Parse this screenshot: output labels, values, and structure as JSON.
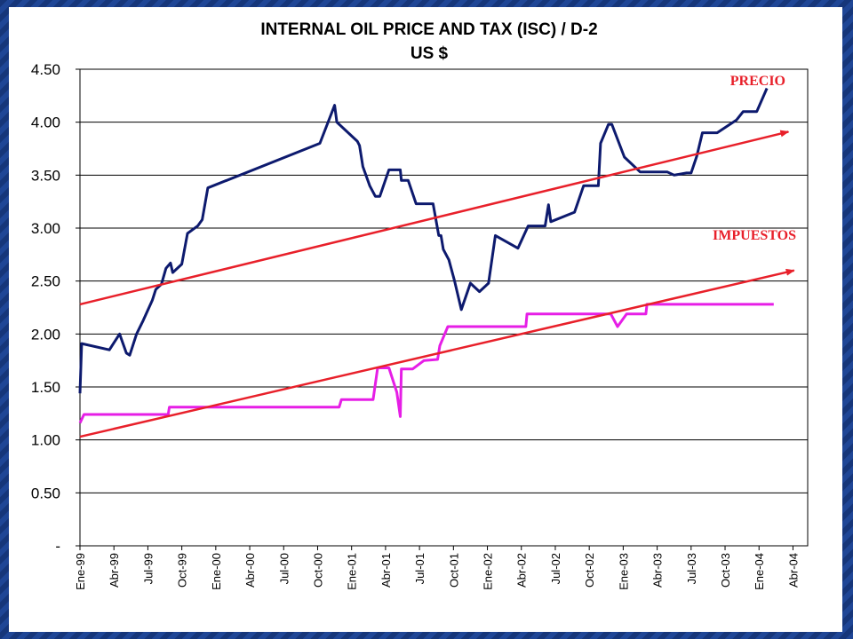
{
  "slide": {
    "background_color": "#1b3f8c",
    "panel_color": "#ffffff"
  },
  "chart_data": {
    "type": "line",
    "title": "INTERNAL OIL PRICE AND TAX (ISC) / D-2",
    "subtitle": "US $",
    "xlabel": "",
    "ylabel": "",
    "ylim": [
      0,
      4.5
    ],
    "yticks": [
      {
        "value": 0,
        "label": "-"
      },
      {
        "value": 0.5,
        "label": "0.50"
      },
      {
        "value": 1.0,
        "label": "1.00"
      },
      {
        "value": 1.5,
        "label": "1.50"
      },
      {
        "value": 2.0,
        "label": "2.00"
      },
      {
        "value": 2.5,
        "label": "2.50"
      },
      {
        "value": 3.0,
        "label": "3.00"
      },
      {
        "value": 3.5,
        "label": "3.50"
      },
      {
        "value": 4.0,
        "label": "4.00"
      },
      {
        "value": 4.5,
        "label": "4.50"
      }
    ],
    "xlim": [
      0,
      64.3
    ],
    "xticks": [
      {
        "value": 0,
        "label": "Ene-99"
      },
      {
        "value": 3,
        "label": "Abr-99"
      },
      {
        "value": 6,
        "label": "Jul-99"
      },
      {
        "value": 9,
        "label": "Oct-99"
      },
      {
        "value": 12,
        "label": "Ene-00"
      },
      {
        "value": 15,
        "label": "Abr-00"
      },
      {
        "value": 18,
        "label": "Jul-00"
      },
      {
        "value": 21,
        "label": "Oct-00"
      },
      {
        "value": 24,
        "label": "Ene-01"
      },
      {
        "value": 27,
        "label": "Abr-01"
      },
      {
        "value": 30,
        "label": "Jul-01"
      },
      {
        "value": 33,
        "label": "Oct-01"
      },
      {
        "value": 36,
        "label": "Ene-02"
      },
      {
        "value": 39,
        "label": "Abr-02"
      },
      {
        "value": 42,
        "label": "Jul-02"
      },
      {
        "value": 45,
        "label": "Oct-02"
      },
      {
        "value": 48,
        "label": "Ene-03"
      },
      {
        "value": 51,
        "label": "Abr-03"
      },
      {
        "value": 54,
        "label": "Jul-03"
      },
      {
        "value": 57,
        "label": "Oct-03"
      },
      {
        "value": 60,
        "label": "Ene-04"
      },
      {
        "value": 63,
        "label": "Abr-04"
      }
    ],
    "grid": true,
    "series": [
      {
        "name": "PRECIO",
        "color": "#0d1a6e",
        "points": [
          [
            0,
            1.44
          ],
          [
            0.15,
            1.91
          ],
          [
            2.6,
            1.85
          ],
          [
            3.5,
            2.0
          ],
          [
            4.1,
            1.82
          ],
          [
            4.4,
            1.8
          ],
          [
            5.0,
            2.0
          ],
          [
            5.6,
            2.13
          ],
          [
            6.4,
            2.32
          ],
          [
            6.7,
            2.42
          ],
          [
            7.2,
            2.47
          ],
          [
            7.6,
            2.62
          ],
          [
            8.0,
            2.67
          ],
          [
            8.2,
            2.58
          ],
          [
            9.0,
            2.66
          ],
          [
            9.5,
            2.95
          ],
          [
            10.4,
            3.02
          ],
          [
            10.8,
            3.08
          ],
          [
            11.3,
            3.38
          ],
          [
            21.2,
            3.8
          ],
          [
            22.5,
            4.16
          ],
          [
            22.7,
            4.0
          ],
          [
            24.5,
            3.82
          ],
          [
            24.7,
            3.78
          ],
          [
            25.0,
            3.58
          ],
          [
            25.6,
            3.4
          ],
          [
            26.1,
            3.3
          ],
          [
            26.5,
            3.3
          ],
          [
            27.3,
            3.55
          ],
          [
            28.3,
            3.55
          ],
          [
            28.4,
            3.45
          ],
          [
            29.0,
            3.45
          ],
          [
            29.7,
            3.23
          ],
          [
            31.2,
            3.23
          ],
          [
            31.7,
            2.93
          ],
          [
            31.9,
            2.93
          ],
          [
            32.1,
            2.8
          ],
          [
            32.6,
            2.7
          ],
          [
            33.1,
            2.5
          ],
          [
            33.7,
            2.23
          ],
          [
            34.5,
            2.48
          ],
          [
            35.3,
            2.4
          ],
          [
            36.1,
            2.48
          ],
          [
            36.7,
            2.93
          ],
          [
            38.7,
            2.81
          ],
          [
            39.6,
            3.02
          ],
          [
            41.1,
            3.02
          ],
          [
            41.4,
            3.22
          ],
          [
            41.6,
            3.06
          ],
          [
            43.7,
            3.15
          ],
          [
            44.5,
            3.4
          ],
          [
            45.8,
            3.4
          ],
          [
            46.0,
            3.8
          ],
          [
            46.7,
            3.98
          ],
          [
            47.0,
            3.98
          ],
          [
            48.1,
            3.67
          ],
          [
            49.5,
            3.53
          ],
          [
            51.9,
            3.53
          ],
          [
            52.5,
            3.5
          ],
          [
            53.6,
            3.52
          ],
          [
            54.0,
            3.52
          ],
          [
            54.5,
            3.68
          ],
          [
            55.0,
            3.9
          ],
          [
            56.3,
            3.9
          ],
          [
            58.0,
            4.02
          ],
          [
            58.6,
            4.1
          ],
          [
            59.8,
            4.1
          ],
          [
            60.7,
            4.32
          ]
        ]
      },
      {
        "name": "IMPUESTOS",
        "color": "#e61ee6",
        "points": [
          [
            0,
            1.16
          ],
          [
            0.35,
            1.24
          ],
          [
            7.8,
            1.24
          ],
          [
            7.9,
            1.31
          ],
          [
            22.9,
            1.31
          ],
          [
            23.1,
            1.38
          ],
          [
            25.9,
            1.38
          ],
          [
            26.3,
            1.68
          ],
          [
            27.3,
            1.68
          ],
          [
            28.0,
            1.45
          ],
          [
            28.3,
            1.22
          ],
          [
            28.4,
            1.67
          ],
          [
            29.4,
            1.67
          ],
          [
            30.4,
            1.75
          ],
          [
            31.6,
            1.76
          ],
          [
            31.8,
            1.89
          ],
          [
            32.5,
            2.07
          ],
          [
            39.4,
            2.07
          ],
          [
            39.5,
            2.19
          ],
          [
            46.9,
            2.19
          ],
          [
            47.5,
            2.07
          ],
          [
            48.3,
            2.19
          ],
          [
            50.0,
            2.19
          ],
          [
            50.1,
            2.28
          ],
          [
            61.3,
            2.28
          ]
        ]
      }
    ],
    "trend_lines": [
      {
        "label": "PRECIO",
        "color": "#e8202a",
        "start": [
          0,
          2.28
        ],
        "end": [
          62.6,
          3.91
        ]
      },
      {
        "label": "IMPUESTOS",
        "color": "#e8202a",
        "start": [
          0,
          1.03
        ],
        "end": [
          63.1,
          2.6
        ]
      }
    ]
  }
}
